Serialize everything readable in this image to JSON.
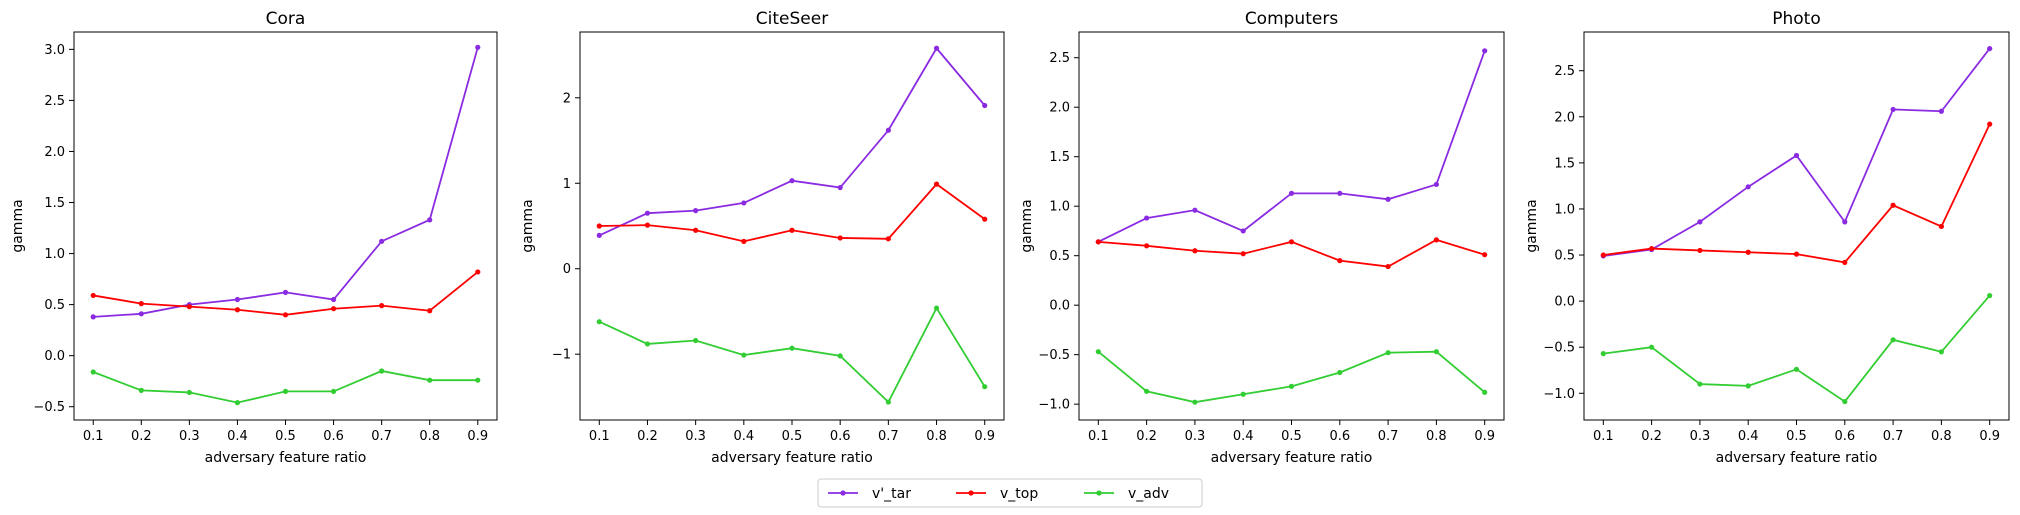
{
  "legend": [
    {
      "name": "v'_tar",
      "color": "#8a2be2"
    },
    {
      "name": "v_top",
      "color": "#ff0000"
    },
    {
      "name": "v_adv",
      "color": "#32cd32"
    }
  ],
  "chart_data": [
    {
      "type": "line",
      "title": "Cora",
      "xlabel": "adversary feature ratio",
      "ylabel": "gamma",
      "x": [
        0.1,
        0.2,
        0.3,
        0.4,
        0.5,
        0.6,
        0.7,
        0.8,
        0.9
      ],
      "xticks": [
        "0.1",
        "0.2",
        "0.3",
        "0.4",
        "0.5",
        "0.6",
        "0.7",
        "0.8",
        "0.9"
      ],
      "ylim": [
        -0.63,
        3.17
      ],
      "yticks": [
        -0.5,
        0.0,
        0.5,
        1.0,
        1.5,
        2.0,
        2.5,
        3.0
      ],
      "ytick_labels": [
        "−0.5",
        "0.0",
        "0.5",
        "1.0",
        "1.5",
        "2.0",
        "2.5",
        "3.0"
      ],
      "series": [
        {
          "name": "v'_tar",
          "color": "#8a2be2",
          "values": [
            0.38,
            0.41,
            0.5,
            0.55,
            0.62,
            0.55,
            1.12,
            1.33,
            3.02
          ]
        },
        {
          "name": "v_top",
          "color": "#ff0000",
          "values": [
            0.59,
            0.51,
            0.48,
            0.45,
            0.4,
            0.46,
            0.49,
            0.44,
            0.82
          ]
        },
        {
          "name": "v_adv",
          "color": "#32cd32",
          "values": [
            -0.16,
            -0.34,
            -0.36,
            -0.46,
            -0.35,
            -0.35,
            -0.15,
            -0.24,
            -0.24
          ]
        }
      ]
    },
    {
      "type": "line",
      "title": "CiteSeer",
      "xlabel": "adversary feature ratio",
      "ylabel": "gamma",
      "x": [
        0.1,
        0.2,
        0.3,
        0.4,
        0.5,
        0.6,
        0.7,
        0.8,
        0.9
      ],
      "xticks": [
        "0.1",
        "0.2",
        "0.3",
        "0.4",
        "0.5",
        "0.6",
        "0.7",
        "0.8",
        "0.9"
      ],
      "ylim": [
        -1.77,
        2.77
      ],
      "yticks": [
        -1,
        0,
        1,
        2
      ],
      "ytick_labels": [
        "−1",
        "0",
        "1",
        "2"
      ],
      "series": [
        {
          "name": "v'_tar",
          "color": "#8a2be2",
          "values": [
            0.39,
            0.65,
            0.68,
            0.77,
            1.03,
            0.95,
            1.62,
            2.58,
            1.91
          ]
        },
        {
          "name": "v_top",
          "color": "#ff0000",
          "values": [
            0.5,
            0.51,
            0.45,
            0.32,
            0.45,
            0.36,
            0.35,
            0.99,
            0.58
          ]
        },
        {
          "name": "v_adv",
          "color": "#32cd32",
          "values": [
            -0.62,
            -0.88,
            -0.84,
            -1.01,
            -0.93,
            -1.02,
            -1.56,
            -0.46,
            -1.38
          ]
        }
      ]
    },
    {
      "type": "line",
      "title": "Computers",
      "xlabel": "adversary feature ratio",
      "ylabel": "gamma",
      "x": [
        0.1,
        0.2,
        0.3,
        0.4,
        0.5,
        0.6,
        0.7,
        0.8,
        0.9
      ],
      "xticks": [
        "0.1",
        "0.2",
        "0.3",
        "0.4",
        "0.5",
        "0.6",
        "0.7",
        "0.8",
        "0.9"
      ],
      "ylim": [
        -1.16,
        2.76
      ],
      "yticks": [
        -1.0,
        -0.5,
        0.0,
        0.5,
        1.0,
        1.5,
        2.0,
        2.5
      ],
      "ytick_labels": [
        "−1.0",
        "−0.5",
        "0.0",
        "0.5",
        "1.0",
        "1.5",
        "2.0",
        "2.5"
      ],
      "series": [
        {
          "name": "v'_tar",
          "color": "#8a2be2",
          "values": [
            0.64,
            0.88,
            0.96,
            0.75,
            1.13,
            1.13,
            1.07,
            1.22,
            2.57
          ]
        },
        {
          "name": "v_top",
          "color": "#ff0000",
          "values": [
            0.64,
            0.6,
            0.55,
            0.52,
            0.64,
            0.45,
            0.39,
            0.66,
            0.51
          ]
        },
        {
          "name": "v_adv",
          "color": "#32cd32",
          "values": [
            -0.47,
            -0.87,
            -0.98,
            -0.9,
            -0.82,
            -0.68,
            -0.48,
            -0.47,
            -0.88
          ]
        }
      ]
    },
    {
      "type": "line",
      "title": "Photo",
      "xlabel": "adversary feature ratio",
      "ylabel": "gamma",
      "x": [
        0.1,
        0.2,
        0.3,
        0.4,
        0.5,
        0.6,
        0.7,
        0.8,
        0.9
      ],
      "xticks": [
        "0.1",
        "0.2",
        "0.3",
        "0.4",
        "0.5",
        "0.6",
        "0.7",
        "0.8",
        "0.9"
      ],
      "ylim": [
        -1.29,
        2.92
      ],
      "yticks": [
        -1.0,
        -0.5,
        0.0,
        0.5,
        1.0,
        1.5,
        2.0,
        2.5
      ],
      "ytick_labels": [
        "−1.0",
        "−0.5",
        "0.0",
        "0.5",
        "1.0",
        "1.5",
        "2.0",
        "2.5"
      ],
      "series": [
        {
          "name": "v'_tar",
          "color": "#8a2be2",
          "values": [
            0.49,
            0.56,
            0.86,
            1.24,
            1.58,
            0.86,
            2.08,
            2.06,
            2.74
          ]
        },
        {
          "name": "v_top",
          "color": "#ff0000",
          "values": [
            0.5,
            0.57,
            0.55,
            0.53,
            0.51,
            0.42,
            1.04,
            0.81,
            1.92
          ]
        },
        {
          "name": "v_adv",
          "color": "#32cd32",
          "values": [
            -0.57,
            -0.5,
            -0.9,
            -0.92,
            -0.74,
            -1.09,
            -0.42,
            -0.55,
            0.06
          ]
        }
      ]
    }
  ]
}
